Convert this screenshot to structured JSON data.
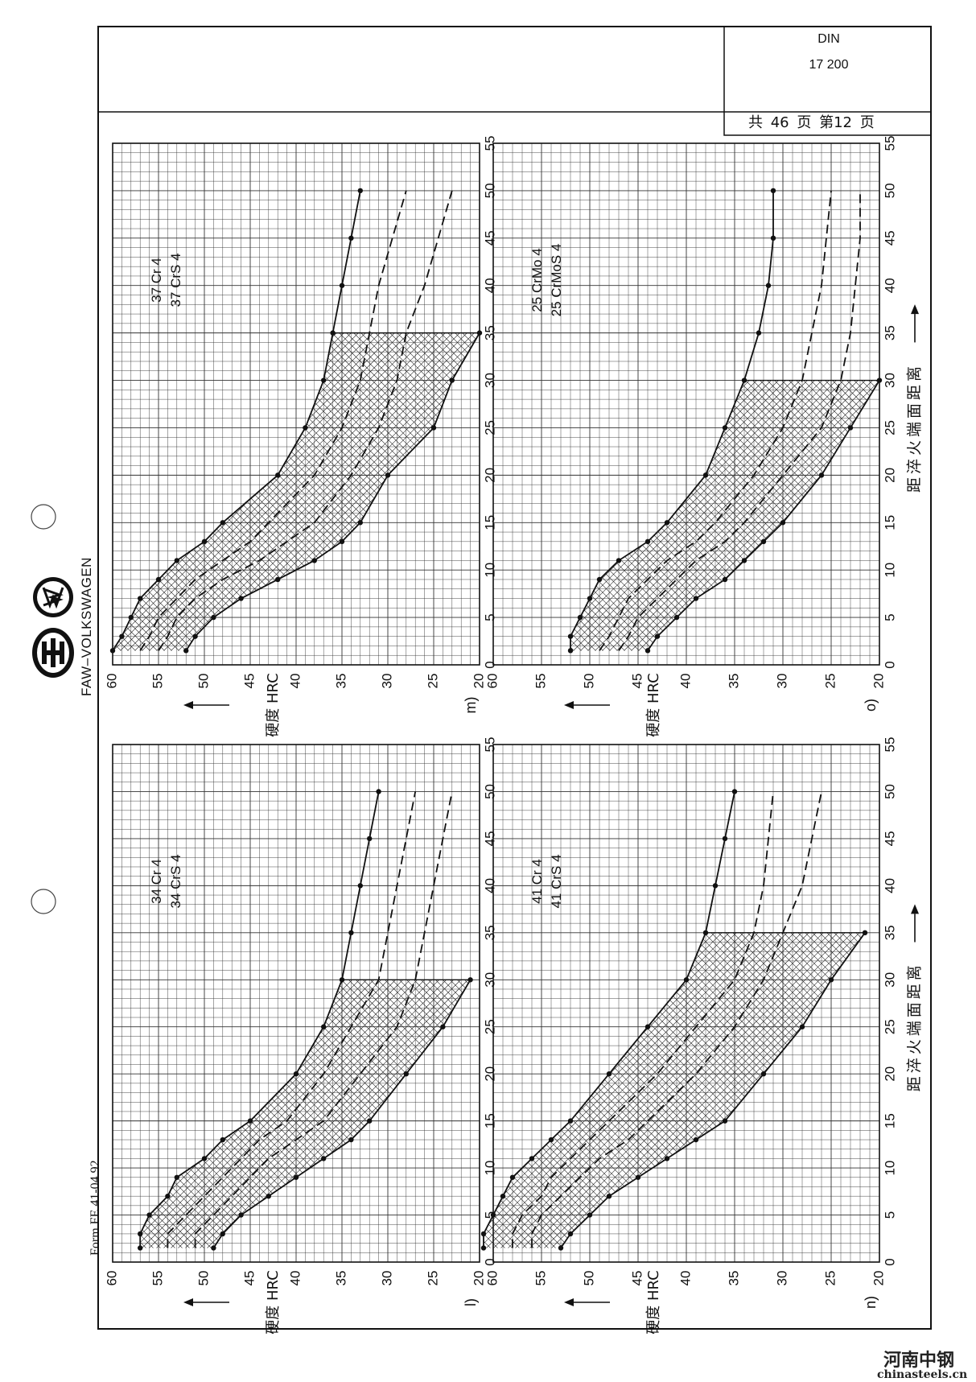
{
  "header": {
    "standard": "DIN",
    "number": "17 200",
    "page_text": "共 46 页 第12 页"
  },
  "form_label": "Form FE 41-04 92",
  "brand": {
    "text": "FAW–VOLKSWAGEN",
    "logo_faw_icon": "faw-logo-icon",
    "logo_vw_icon": "vw-logo-icon"
  },
  "watermark": {
    "line1": "河南中钢",
    "line2": "chinasteels.cn"
  },
  "axis_text": {
    "y_label": "硬度  HRC",
    "x_label": "距淬火端面距离",
    "y_ticks": [
      "60",
      "55",
      "50",
      "45",
      "40",
      "35",
      "30",
      "25",
      "20"
    ],
    "x_ticks": [
      "0",
      "5",
      "10",
      "15",
      "20",
      "25",
      "30",
      "35",
      "40",
      "45",
      "50",
      "55"
    ]
  },
  "chart_data": [
    {
      "type": "line",
      "panel": "m)",
      "designations": [
        "37 Cr 4",
        "37 CrS 4"
      ],
      "xlim": [
        0,
        55
      ],
      "ylim": [
        20,
        60
      ],
      "band_limit_x": 35,
      "series": [
        {
          "values": [
            [
              1.5,
              60
            ],
            [
              3,
              59
            ],
            [
              5,
              58
            ],
            [
              7,
              57
            ],
            [
              9,
              55
            ],
            [
              11,
              53
            ],
            [
              13,
              50
            ],
            [
              15,
              48
            ],
            [
              20,
              42
            ],
            [
              25,
              39
            ],
            [
              30,
              37
            ],
            [
              35,
              36
            ],
            [
              40,
              35
            ],
            [
              45,
              34
            ],
            [
              50,
              33
            ]
          ]
        },
        {
          "values": [
            [
              1.5,
              57
            ],
            [
              3,
              56
            ],
            [
              5,
              55
            ],
            [
              7,
              53
            ],
            [
              9,
              51
            ],
            [
              11,
              48
            ],
            [
              13,
              45
            ],
            [
              15,
              43
            ],
            [
              20,
              38
            ],
            [
              25,
              35
            ],
            [
              30,
              33
            ],
            [
              35,
              32
            ],
            [
              40,
              31
            ],
            [
              45,
              29.5
            ],
            [
              50,
              28
            ]
          ]
        },
        {
          "values": [
            [
              1.5,
              55
            ],
            [
              3,
              54
            ],
            [
              5,
              53
            ],
            [
              7,
              51
            ],
            [
              9,
              48
            ],
            [
              11,
              44
            ],
            [
              13,
              41
            ],
            [
              15,
              38
            ],
            [
              20,
              34
            ],
            [
              25,
              31
            ],
            [
              30,
              29
            ],
            [
              35,
              28
            ],
            [
              40,
              26
            ],
            [
              45,
              24.5
            ],
            [
              50,
              23
            ]
          ]
        },
        {
          "values": [
            [
              1.5,
              52
            ],
            [
              3,
              51
            ],
            [
              5,
              49
            ],
            [
              7,
              46
            ],
            [
              9,
              42
            ],
            [
              11,
              38
            ],
            [
              13,
              35
            ],
            [
              15,
              33
            ],
            [
              20,
              30
            ],
            [
              25,
              25
            ],
            [
              30,
              23
            ],
            [
              35,
              20
            ]
          ]
        }
      ]
    },
    {
      "type": "line",
      "panel": "o)",
      "designations": [
        "25 CrMo 4",
        "25 CrMoS 4"
      ],
      "xlim": [
        0,
        55
      ],
      "ylim": [
        20,
        60
      ],
      "band_limit_x": 30,
      "series": [
        {
          "values": [
            [
              1.5,
              52
            ],
            [
              3,
              52
            ],
            [
              5,
              51
            ],
            [
              7,
              50
            ],
            [
              9,
              49
            ],
            [
              11,
              47
            ],
            [
              13,
              44
            ],
            [
              15,
              42
            ],
            [
              20,
              38
            ],
            [
              25,
              36
            ],
            [
              30,
              34
            ],
            [
              35,
              32.5
            ],
            [
              40,
              31.5
            ],
            [
              45,
              31
            ],
            [
              50,
              31
            ]
          ]
        },
        {
          "values": [
            [
              1.5,
              49
            ],
            [
              3,
              48
            ],
            [
              5,
              47
            ],
            [
              7,
              46
            ],
            [
              9,
              44
            ],
            [
              11,
              42
            ],
            [
              13,
              39
            ],
            [
              15,
              37
            ],
            [
              20,
              33
            ],
            [
              25,
              30
            ],
            [
              30,
              28
            ],
            [
              35,
              27
            ],
            [
              40,
              26
            ],
            [
              45,
              25.5
            ],
            [
              50,
              25
            ]
          ]
        },
        {
          "values": [
            [
              1.5,
              47
            ],
            [
              3,
              46
            ],
            [
              5,
              45
            ],
            [
              7,
              43
            ],
            [
              9,
              41
            ],
            [
              11,
              39
            ],
            [
              13,
              36
            ],
            [
              15,
              34
            ],
            [
              20,
              30
            ],
            [
              25,
              26
            ],
            [
              30,
              24
            ],
            [
              35,
              23
            ],
            [
              40,
              22.5
            ],
            [
              45,
              22
            ],
            [
              50,
              22
            ]
          ]
        },
        {
          "values": [
            [
              1.5,
              44
            ],
            [
              3,
              43
            ],
            [
              5,
              41
            ],
            [
              7,
              39
            ],
            [
              9,
              36
            ],
            [
              11,
              34
            ],
            [
              13,
              32
            ],
            [
              15,
              30
            ],
            [
              20,
              26
            ],
            [
              25,
              23
            ],
            [
              30,
              20
            ]
          ]
        }
      ]
    },
    {
      "type": "line",
      "panel": "l)",
      "designations": [
        "34 Cr 4",
        "34 CrS 4"
      ],
      "xlim": [
        0,
        55
      ],
      "ylim": [
        20,
        60
      ],
      "band_limit_x": 30,
      "series": [
        {
          "values": [
            [
              1.5,
              57
            ],
            [
              3,
              57
            ],
            [
              5,
              56
            ],
            [
              7,
              54
            ],
            [
              9,
              53
            ],
            [
              11,
              50
            ],
            [
              13,
              48
            ],
            [
              15,
              45
            ],
            [
              20,
              40
            ],
            [
              25,
              37
            ],
            [
              30,
              35
            ],
            [
              35,
              34
            ],
            [
              40,
              33
            ],
            [
              45,
              32
            ],
            [
              50,
              31
            ]
          ]
        },
        {
          "values": [
            [
              1.5,
              54
            ],
            [
              3,
              54
            ],
            [
              5,
              52
            ],
            [
              7,
              50
            ],
            [
              9,
              48
            ],
            [
              11,
              46
            ],
            [
              13,
              44
            ],
            [
              15,
              41
            ],
            [
              20,
              37
            ],
            [
              25,
              34
            ],
            [
              30,
              31
            ],
            [
              35,
              30
            ],
            [
              40,
              29
            ],
            [
              45,
              28
            ],
            [
              50,
              27
            ]
          ]
        },
        {
          "values": [
            [
              1.5,
              51
            ],
            [
              3,
              51
            ],
            [
              5,
              49
            ],
            [
              7,
              47
            ],
            [
              9,
              45
            ],
            [
              11,
              43
            ],
            [
              13,
              40
            ],
            [
              15,
              37
            ],
            [
              20,
              33
            ],
            [
              25,
              29
            ],
            [
              30,
              27
            ],
            [
              35,
              26
            ],
            [
              40,
              25
            ],
            [
              45,
              24
            ],
            [
              50,
              23
            ]
          ]
        },
        {
          "values": [
            [
              1.5,
              49
            ],
            [
              3,
              48
            ],
            [
              5,
              46
            ],
            [
              7,
              43
            ],
            [
              9,
              40
            ],
            [
              11,
              37
            ],
            [
              13,
              34
            ],
            [
              15,
              32
            ],
            [
              20,
              28
            ],
            [
              25,
              24
            ],
            [
              30,
              21
            ]
          ]
        }
      ]
    },
    {
      "type": "line",
      "panel": "n)",
      "designations": [
        "41 Cr 4",
        "41 CrS 4"
      ],
      "xlim": [
        0,
        55
      ],
      "ylim": [
        20,
        60
      ],
      "band_limit_x": 35,
      "series": [
        {
          "values": [
            [
              1.5,
              61
            ],
            [
              3,
              61
            ],
            [
              5,
              60
            ],
            [
              7,
              59
            ],
            [
              9,
              58
            ],
            [
              11,
              56
            ],
            [
              13,
              54
            ],
            [
              15,
              52
            ],
            [
              20,
              48
            ],
            [
              25,
              44
            ],
            [
              30,
              40
            ],
            [
              35,
              38
            ],
            [
              40,
              37
            ],
            [
              45,
              36
            ],
            [
              50,
              35
            ]
          ]
        },
        {
          "values": [
            [
              1.5,
              58
            ],
            [
              3,
              58
            ],
            [
              5,
              57
            ],
            [
              7,
              55
            ],
            [
              9,
              54
            ],
            [
              11,
              52
            ],
            [
              13,
              50
            ],
            [
              15,
              48
            ],
            [
              20,
              43
            ],
            [
              25,
              39
            ],
            [
              30,
              35
            ],
            [
              35,
              33
            ],
            [
              40,
              32
            ],
            [
              45,
              31.5
            ],
            [
              50,
              31
            ]
          ]
        },
        {
          "values": [
            [
              1.5,
              56
            ],
            [
              3,
              56
            ],
            [
              5,
              55
            ],
            [
              7,
              53
            ],
            [
              9,
              51
            ],
            [
              11,
              49
            ],
            [
              13,
              46
            ],
            [
              15,
              44
            ],
            [
              20,
              39
            ],
            [
              25,
              35
            ],
            [
              30,
              32
            ],
            [
              35,
              30
            ],
            [
              40,
              28
            ],
            [
              45,
              27
            ],
            [
              50,
              26
            ]
          ]
        },
        {
          "values": [
            [
              1.5,
              53
            ],
            [
              3,
              52
            ],
            [
              5,
              50
            ],
            [
              7,
              48
            ],
            [
              9,
              45
            ],
            [
              11,
              42
            ],
            [
              13,
              39
            ],
            [
              15,
              36
            ],
            [
              20,
              32
            ],
            [
              25,
              28
            ],
            [
              30,
              25
            ],
            [
              35,
              21.5
            ]
          ]
        }
      ]
    }
  ]
}
